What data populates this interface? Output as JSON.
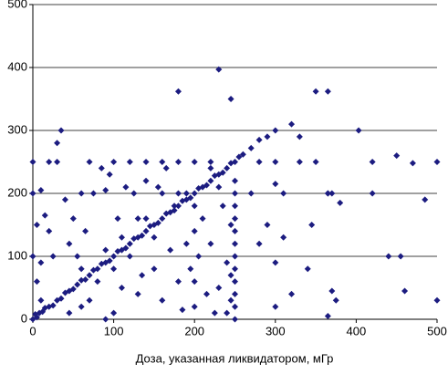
{
  "chart_data": {
    "type": "scatter",
    "x_label": "Доза, указанная ликвидатором, мГр",
    "color": "#1c1c80",
    "grid": true,
    "xlim": [
      0,
      500
    ],
    "ylim": [
      0,
      500
    ],
    "xticks": [
      0,
      100,
      200,
      300,
      400,
      500
    ],
    "yticks": [
      0,
      100,
      200,
      300,
      400,
      500
    ],
    "x": [
      0,
      3,
      5,
      8,
      12,
      15,
      20,
      25,
      30,
      35,
      40,
      45,
      50,
      55,
      60,
      65,
      70,
      75,
      80,
      85,
      90,
      95,
      100,
      105,
      110,
      115,
      120,
      125,
      130,
      135,
      140,
      145,
      150,
      155,
      160,
      165,
      170,
      175,
      180,
      185,
      190,
      195,
      200,
      205,
      210,
      215,
      220,
      225,
      230,
      235,
      240,
      245,
      250,
      255,
      260,
      270,
      280,
      290,
      300,
      60,
      80,
      100,
      90,
      120,
      110,
      150,
      140,
      200,
      180,
      220,
      230,
      0,
      20,
      30,
      70,
      100,
      120,
      140,
      160,
      180,
      200,
      220,
      280,
      300,
      330,
      350,
      0,
      10,
      60,
      90,
      160,
      190,
      270,
      310,
      365,
      370,
      250,
      250,
      250,
      250,
      250,
      250,
      250,
      250,
      250,
      250,
      250,
      250,
      245,
      245,
      245,
      240,
      240,
      200,
      200,
      205,
      200,
      210,
      190,
      195,
      215,
      225,
      230,
      220,
      235,
      130,
      135,
      130,
      125,
      140,
      150,
      160,
      170,
      175,
      165,
      155,
      180,
      185,
      0,
      5,
      10,
      15,
      20,
      25,
      30,
      35,
      40,
      45,
      50,
      55,
      65,
      70,
      75,
      85,
      95,
      100,
      105,
      110,
      115,
      45,
      60,
      90,
      5,
      10,
      230,
      180,
      350,
      365,
      245,
      403,
      420,
      450,
      470,
      500,
      485,
      420,
      440,
      455,
      460,
      500,
      370,
      375,
      365,
      345,
      330,
      320,
      365,
      380,
      300,
      290,
      280,
      300,
      310,
      340,
      320,
      300
    ],
    "values": [
      0,
      8,
      3,
      10,
      12,
      18,
      20,
      22,
      30,
      33,
      42,
      45,
      48,
      55,
      62,
      63,
      70,
      78,
      80,
      88,
      90,
      93,
      100,
      108,
      110,
      113,
      120,
      128,
      130,
      133,
      140,
      148,
      150,
      153,
      160,
      168,
      170,
      173,
      180,
      188,
      190,
      193,
      200,
      208,
      210,
      213,
      220,
      228,
      230,
      233,
      240,
      248,
      250,
      258,
      262,
      272,
      285,
      290,
      300,
      80,
      60,
      80,
      110,
      100,
      130,
      130,
      160,
      180,
      200,
      240,
      210,
      250,
      250,
      250,
      250,
      250,
      250,
      250,
      250,
      250,
      250,
      250,
      250,
      250,
      250,
      250,
      200,
      205,
      200,
      205,
      200,
      200,
      200,
      200,
      200,
      200,
      0,
      20,
      40,
      60,
      80,
      100,
      120,
      140,
      160,
      180,
      200,
      220,
      30,
      70,
      150,
      90,
      10,
      20,
      60,
      100,
      140,
      160,
      120,
      80,
      40,
      10,
      50,
      120,
      180,
      40,
      70,
      160,
      200,
      220,
      80,
      30,
      110,
      180,
      240,
      210,
      60,
      15,
      100,
      60,
      30,
      165,
      140,
      100,
      280,
      300,
      190,
      120,
      160,
      100,
      140,
      30,
      200,
      240,
      230,
      10,
      160,
      50,
      210,
      10,
      20,
      0,
      150,
      90,
      397,
      362,
      362,
      362,
      350,
      300,
      250,
      260,
      248,
      250,
      190,
      200,
      100,
      100,
      45,
      30,
      45,
      30,
      5,
      150,
      290,
      310,
      200,
      185,
      215,
      150,
      120,
      90,
      130,
      80,
      40,
      20
    ]
  }
}
